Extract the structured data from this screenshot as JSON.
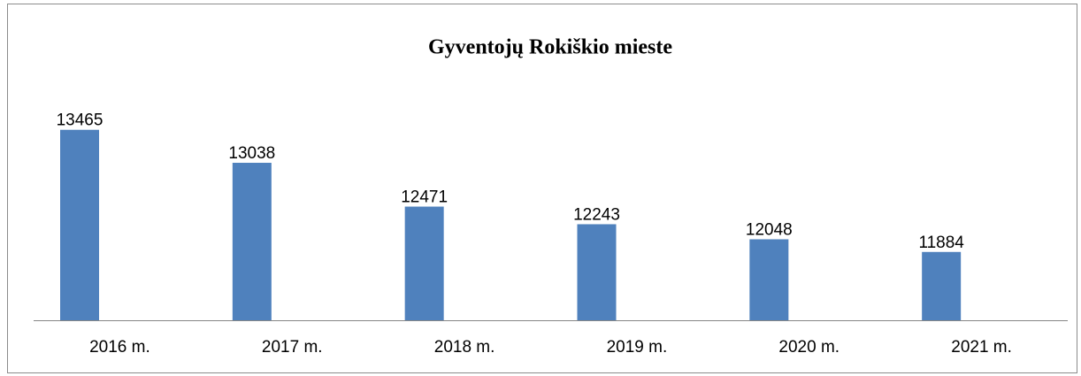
{
  "chart_data": {
    "type": "bar",
    "title": "Gyventojų Rokiškio mieste",
    "categories": [
      "2016 m.",
      "2017 m.",
      "2018 m.",
      "2019 m.",
      "2020 m.",
      "2021 m."
    ],
    "values": [
      13465,
      13038,
      12471,
      12243,
      12048,
      11884
    ],
    "color": "#4f81bd",
    "ylim": [
      11000,
      14000
    ]
  }
}
